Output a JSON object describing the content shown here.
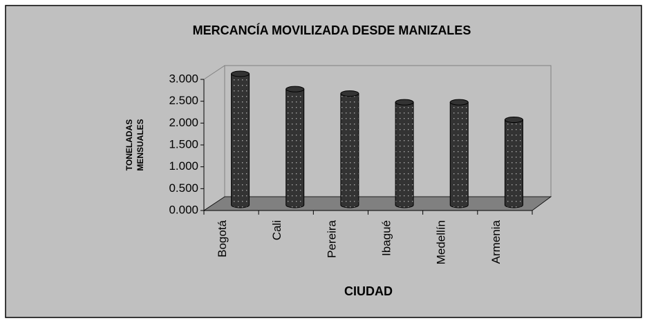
{
  "chart_data": {
    "type": "bar3d",
    "title": "MERCANCÍA MOVILIZADA DESDE MANIZALES",
    "ylabel": [
      "TONELADAS",
      "MENSUALES"
    ],
    "xlabel": "CIUDAD",
    "categories": [
      "Bogotá",
      "Cali",
      "Pereira",
      "Ibagué",
      "Medellín",
      "Armenia"
    ],
    "values": [
      3000,
      2650,
      2550,
      2350,
      2350,
      1950
    ],
    "color": "#333333",
    "ylim": [
      0,
      3000
    ],
    "yticks": [
      {
        "value": 0,
        "label": "0.000"
      },
      {
        "value": 500,
        "label": "0.500"
      },
      {
        "value": 1000,
        "label": "1.000"
      },
      {
        "value": 1500,
        "label": "1.500"
      },
      {
        "value": 2000,
        "label": "2.000"
      },
      {
        "value": 2500,
        "label": "2.500"
      },
      {
        "value": 3000,
        "label": "3.000"
      }
    ],
    "grid": false
  }
}
